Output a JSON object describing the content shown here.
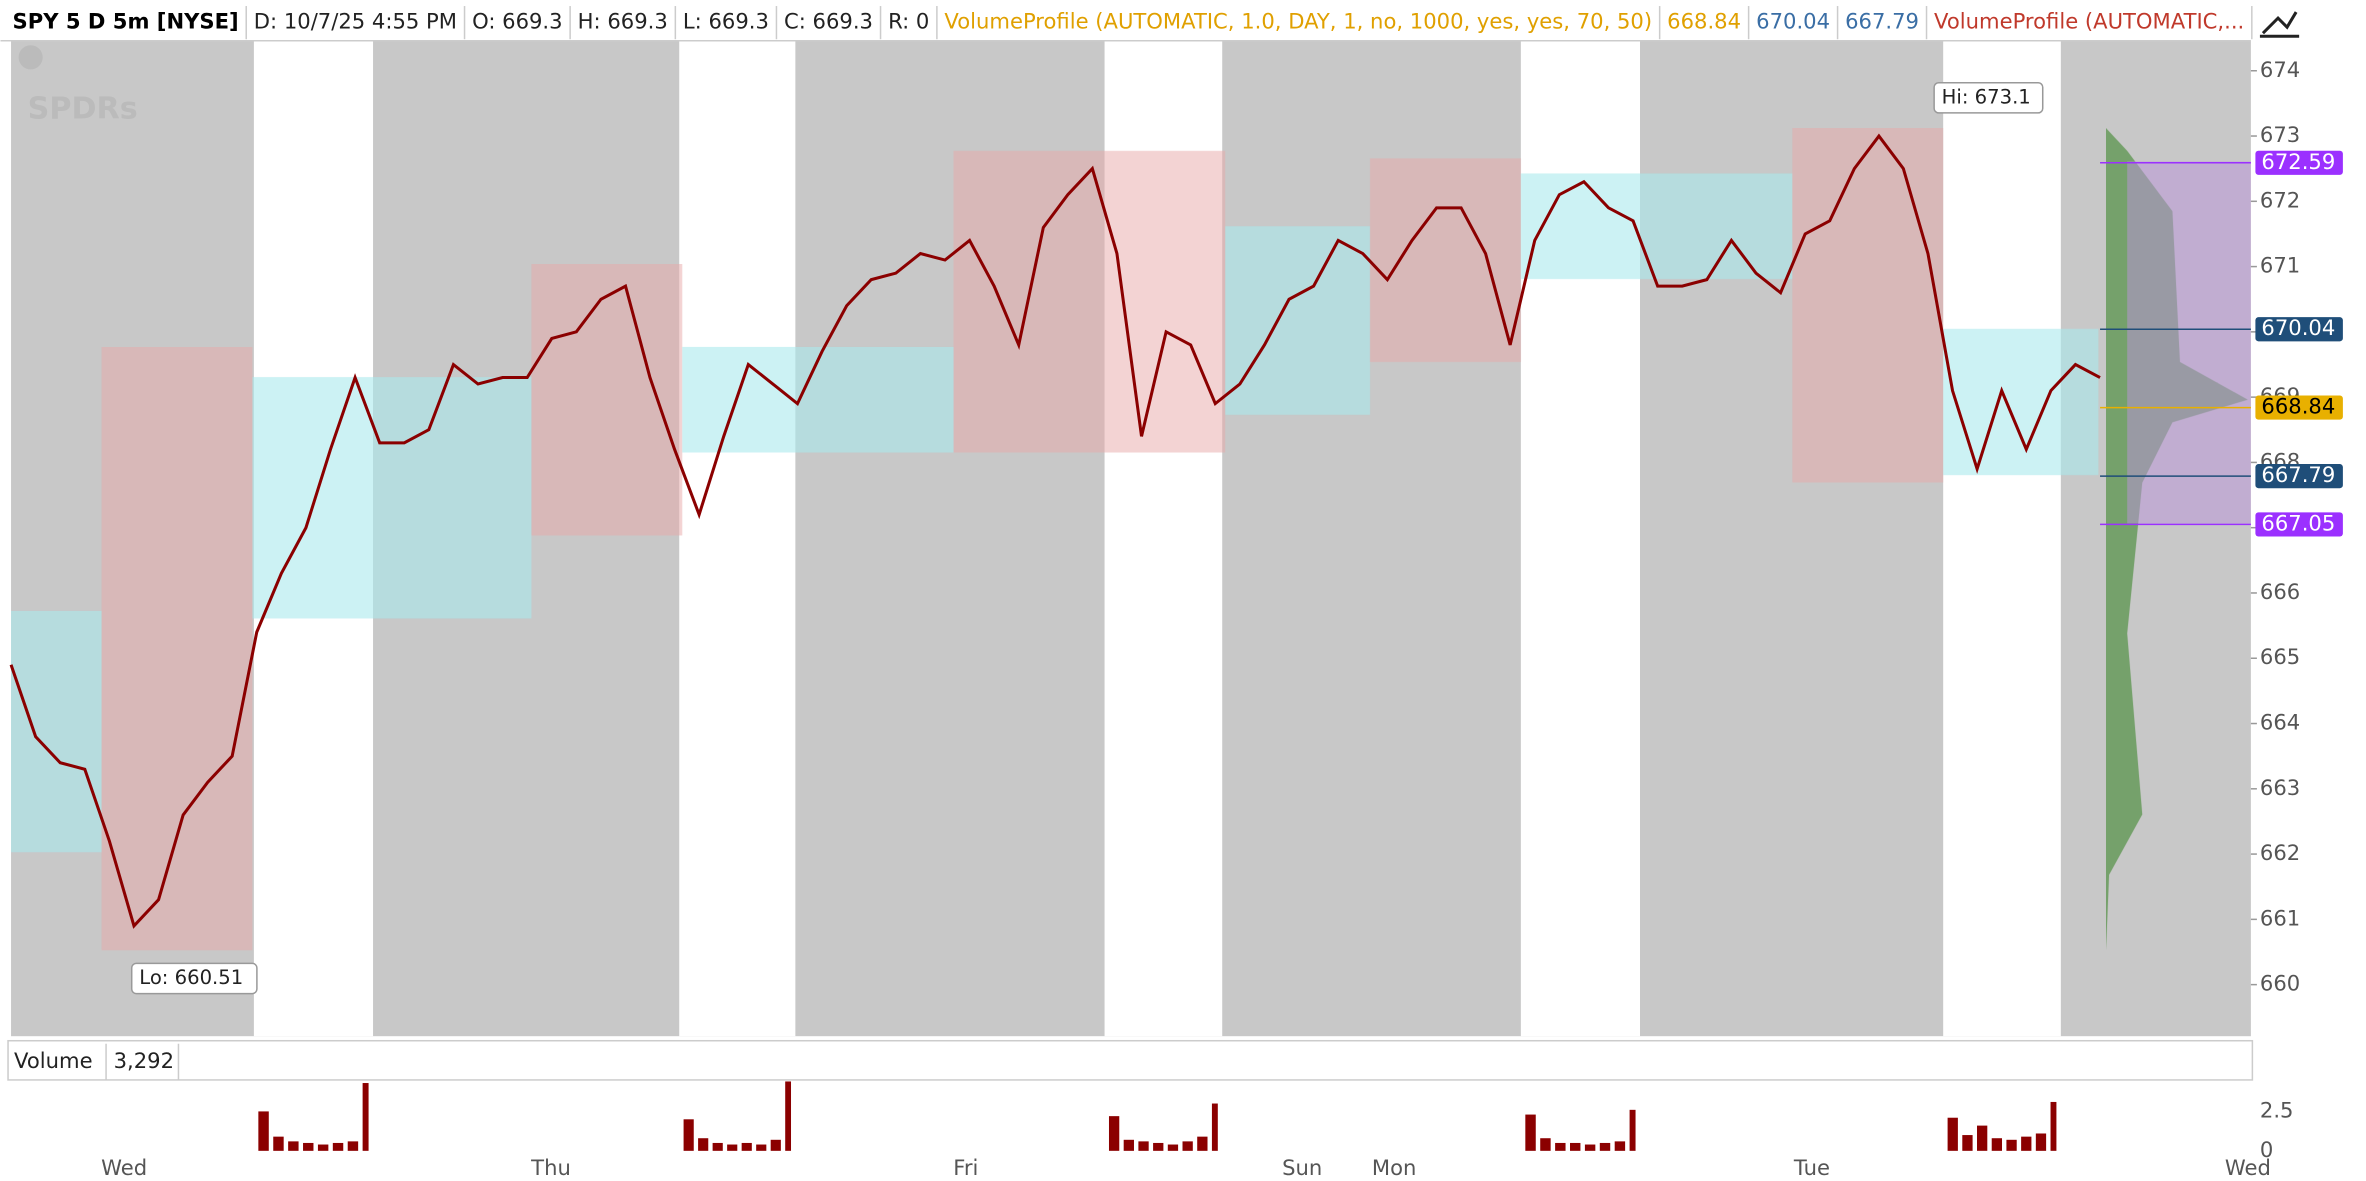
{
  "header": {
    "items": [
      {
        "text": "SPY 5 D 5m [NYSE]",
        "color": "#000000",
        "bold": true
      },
      {
        "text": "D: 10/7/25 4:55 PM",
        "color": "#222222"
      },
      {
        "text": "O: 669.3",
        "color": "#222222"
      },
      {
        "text": "H: 669.3",
        "color": "#222222"
      },
      {
        "text": "L: 669.3",
        "color": "#222222"
      },
      {
        "text": "C: 669.3",
        "color": "#222222"
      },
      {
        "text": "R: 0",
        "color": "#222222"
      },
      {
        "text": "VolumeProfile (AUTOMATIC, 1.0, DAY, 1, no, 1000, yes, yes, 70, 50)",
        "color": "#e0a000"
      },
      {
        "text": "668.84",
        "color": "#e0a000"
      },
      {
        "text": "670.04",
        "color": "#3a6ea5"
      },
      {
        "text": "667.79",
        "color": "#3a6ea5"
      },
      {
        "text": "VolumeProfile (AUTOMATIC,...",
        "color": "#c0392b"
      }
    ]
  },
  "chart_data": {
    "type": "line",
    "color": "#8b0000",
    "values": [
      664.9,
      663.8,
      663.4,
      663.3,
      662.2,
      660.9,
      661.3,
      662.6,
      663.1,
      663.5,
      665.4,
      666.3,
      667.0,
      668.2,
      669.3,
      668.3,
      668.3,
      668.5,
      669.5,
      669.2,
      669.3,
      669.3,
      669.9,
      670.0,
      670.5,
      670.7,
      669.3,
      668.2,
      667.2,
      668.4,
      669.5,
      669.2,
      668.9,
      669.7,
      670.4,
      670.8,
      670.9,
      671.2,
      671.1,
      671.4,
      670.7,
      669.8,
      671.6,
      672.1,
      672.5,
      671.2,
      668.4,
      670.0,
      669.8,
      668.9,
      669.2,
      669.8,
      670.5,
      670.7,
      671.4,
      671.2,
      670.8,
      671.4,
      671.9,
      671.9,
      671.2,
      669.8,
      671.4,
      672.1,
      672.3,
      671.9,
      671.7,
      670.7,
      670.7,
      670.8,
      671.4,
      670.9,
      670.6,
      671.5,
      671.7,
      672.5,
      673.0,
      672.5,
      671.2,
      669.1,
      667.9,
      669.1,
      668.2,
      669.1,
      669.5,
      669.3
    ],
    "ylim": [
      659.21,
      674.46
    ],
    "yticks": [
      660,
      661,
      662,
      663,
      664,
      665,
      666,
      667,
      668,
      669,
      670,
      671,
      672,
      673,
      674
    ],
    "x_labels": [
      "Wed",
      "Thu",
      "Fri",
      "Sun",
      "Mon",
      "Tue",
      "Wed"
    ],
    "price_markers": [
      {
        "value": 672.59,
        "color": "#9b30ff"
      },
      {
        "value": 670.04,
        "color": "#1f4e79"
      },
      {
        "value": 668.84,
        "color": "#e8b000"
      },
      {
        "value": 667.79,
        "color": "#1f4e79"
      },
      {
        "value": 667.05,
        "color": "#9b30ff"
      }
    ],
    "annotations": [
      {
        "text": "Hi: 673.1",
        "value": 673.1
      },
      {
        "text": "Lo: 660.51",
        "value": 660.51
      }
    ],
    "volume": {
      "title": "Volume",
      "last": {
        "value": 3292,
        "label": "3,292"
      },
      "color": "#8b0000",
      "ylim": [
        0,
        4.4
      ],
      "yticks": [
        2.5,
        0
      ],
      "sessions": [
        [
          2.5,
          0.9,
          0.6,
          0.5,
          0.4,
          0.5,
          0.6,
          4.3
        ],
        [
          2.0,
          0.8,
          0.5,
          0.4,
          0.5,
          0.4,
          0.7,
          4.4
        ],
        [
          2.2,
          0.7,
          0.6,
          0.5,
          0.4,
          0.6,
          0.9,
          3.0
        ],
        [
          2.3,
          0.8,
          0.5,
          0.5,
          0.4,
          0.5,
          0.6,
          2.6
        ],
        [
          2.1,
          1.0,
          1.6,
          0.8,
          0.7,
          0.9,
          1.1,
          3.1
        ]
      ]
    }
  }
}
